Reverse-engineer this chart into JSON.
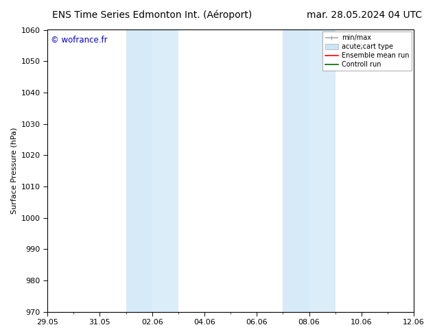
{
  "title_left": "ENS Time Series Edmonton Int. (Aéroport)",
  "title_right": "mar. 28.05.2024 04 UTC",
  "ylabel": "Surface Pressure (hPa)",
  "ylim": [
    970,
    1060
  ],
  "yticks": [
    970,
    980,
    990,
    1000,
    1010,
    1020,
    1030,
    1040,
    1050,
    1060
  ],
  "xtick_labels": [
    "29.05",
    "31.05",
    "02.06",
    "04.06",
    "06.06",
    "08.06",
    "10.06",
    "12.06"
  ],
  "xtick_positions": [
    0,
    2,
    4,
    6,
    8,
    10,
    12,
    14
  ],
  "xlim": [
    0,
    14
  ],
  "shaded_bands": [
    {
      "start": 3,
      "end": 4,
      "color": "#d6eaf8"
    },
    {
      "start": 4,
      "end": 5,
      "color": "#daedf8"
    },
    {
      "start": 9,
      "end": 10,
      "color": "#d6eaf8"
    },
    {
      "start": 10,
      "end": 11,
      "color": "#daedf8"
    }
  ],
  "shaded_color": "#daedf8",
  "bg_color": "#ffffff",
  "watermark_text": "© wofrance.fr",
  "watermark_color": "#0000cc",
  "legend_items": [
    {
      "label": "min/max",
      "color": "#aaaaaa",
      "lw": 1.2
    },
    {
      "label": "acute;cart type",
      "color": "#cce5f5",
      "lw": 8
    },
    {
      "label": "Ensemble mean run",
      "color": "#ff0000",
      "lw": 1.2
    },
    {
      "label": "Controll run",
      "color": "#006600",
      "lw": 1.2
    }
  ],
  "title_fontsize": 10,
  "axis_fontsize": 8,
  "tick_fontsize": 8,
  "legend_fontsize": 7
}
